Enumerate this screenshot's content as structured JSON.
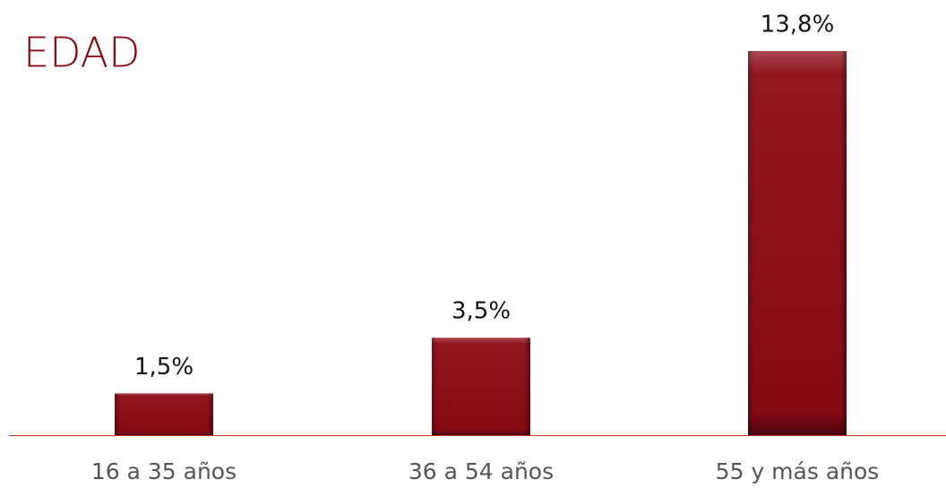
{
  "chart_data": {
    "type": "bar",
    "title": "EDAD",
    "categories": [
      "16 a 35 años",
      "36 a 54 años",
      "55 y más años"
    ],
    "values": [
      1.5,
      3.5,
      13.8
    ],
    "value_labels": [
      "1,5%",
      "3,5%",
      "13,8%"
    ],
    "color": "#8b0a14"
  }
}
